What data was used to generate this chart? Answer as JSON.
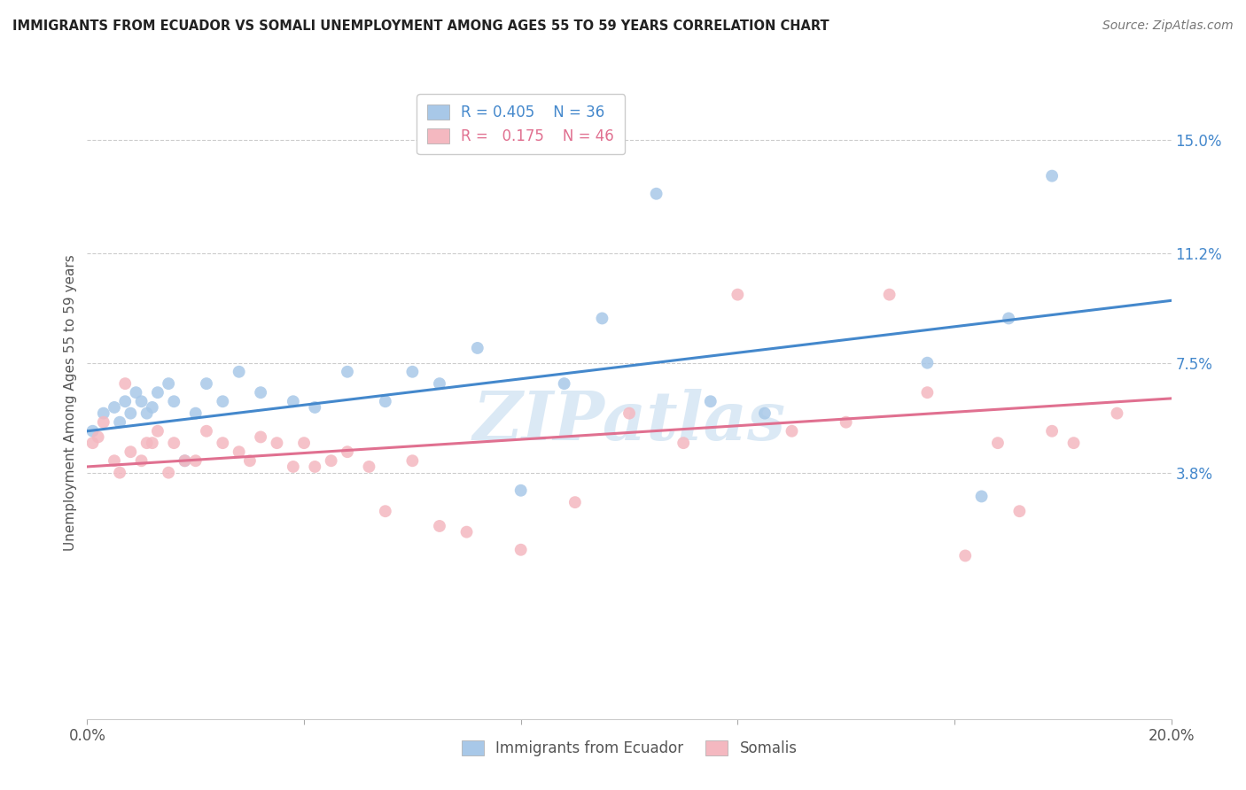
{
  "title": "IMMIGRANTS FROM ECUADOR VS SOMALI UNEMPLOYMENT AMONG AGES 55 TO 59 YEARS CORRELATION CHART",
  "source": "Source: ZipAtlas.com",
  "ylabel": "Unemployment Among Ages 55 to 59 years",
  "xlim": [
    0.0,
    0.2
  ],
  "ylim": [
    -0.045,
    0.168
  ],
  "ytick_labels_right": [
    "15.0%",
    "11.2%",
    "7.5%",
    "3.8%"
  ],
  "ytick_values_right": [
    0.15,
    0.112,
    0.075,
    0.038
  ],
  "ecuador_R": 0.405,
  "ecuador_N": 36,
  "somali_R": 0.175,
  "somali_N": 46,
  "ecuador_color": "#a8c8e8",
  "somali_color": "#f4b8c0",
  "ecuador_line_color": "#4488cc",
  "somali_line_color": "#e07090",
  "watermark": "ZIPatlas",
  "ecuador_line_start_y": 0.052,
  "ecuador_line_end_y": 0.096,
  "somali_line_start_y": 0.04,
  "somali_line_end_y": 0.063,
  "ecuador_points_x": [
    0.001,
    0.003,
    0.005,
    0.006,
    0.007,
    0.008,
    0.009,
    0.01,
    0.011,
    0.012,
    0.013,
    0.015,
    0.016,
    0.018,
    0.02,
    0.022,
    0.025,
    0.028,
    0.032,
    0.038,
    0.042,
    0.048,
    0.055,
    0.06,
    0.065,
    0.072,
    0.08,
    0.088,
    0.095,
    0.105,
    0.115,
    0.125,
    0.155,
    0.165,
    0.17,
    0.178
  ],
  "ecuador_points_y": [
    0.052,
    0.058,
    0.06,
    0.055,
    0.062,
    0.058,
    0.065,
    0.062,
    0.058,
    0.06,
    0.065,
    0.068,
    0.062,
    0.042,
    0.058,
    0.068,
    0.062,
    0.072,
    0.065,
    0.062,
    0.06,
    0.072,
    0.062,
    0.072,
    0.068,
    0.08,
    0.032,
    0.068,
    0.09,
    0.132,
    0.062,
    0.058,
    0.075,
    0.03,
    0.09,
    0.138
  ],
  "somali_points_x": [
    0.001,
    0.002,
    0.003,
    0.005,
    0.006,
    0.007,
    0.008,
    0.01,
    0.011,
    0.012,
    0.013,
    0.015,
    0.016,
    0.018,
    0.02,
    0.022,
    0.025,
    0.028,
    0.03,
    0.032,
    0.035,
    0.038,
    0.04,
    0.042,
    0.045,
    0.048,
    0.052,
    0.055,
    0.06,
    0.065,
    0.07,
    0.08,
    0.09,
    0.1,
    0.11,
    0.12,
    0.13,
    0.14,
    0.148,
    0.155,
    0.162,
    0.168,
    0.172,
    0.178,
    0.182,
    0.19
  ],
  "somali_points_y": [
    0.048,
    0.05,
    0.055,
    0.042,
    0.038,
    0.068,
    0.045,
    0.042,
    0.048,
    0.048,
    0.052,
    0.038,
    0.048,
    0.042,
    0.042,
    0.052,
    0.048,
    0.045,
    0.042,
    0.05,
    0.048,
    0.04,
    0.048,
    0.04,
    0.042,
    0.045,
    0.04,
    0.025,
    0.042,
    0.02,
    0.018,
    0.012,
    0.028,
    0.058,
    0.048,
    0.098,
    0.052,
    0.055,
    0.098,
    0.065,
    0.01,
    0.048,
    0.025,
    0.052,
    0.048,
    0.058
  ]
}
